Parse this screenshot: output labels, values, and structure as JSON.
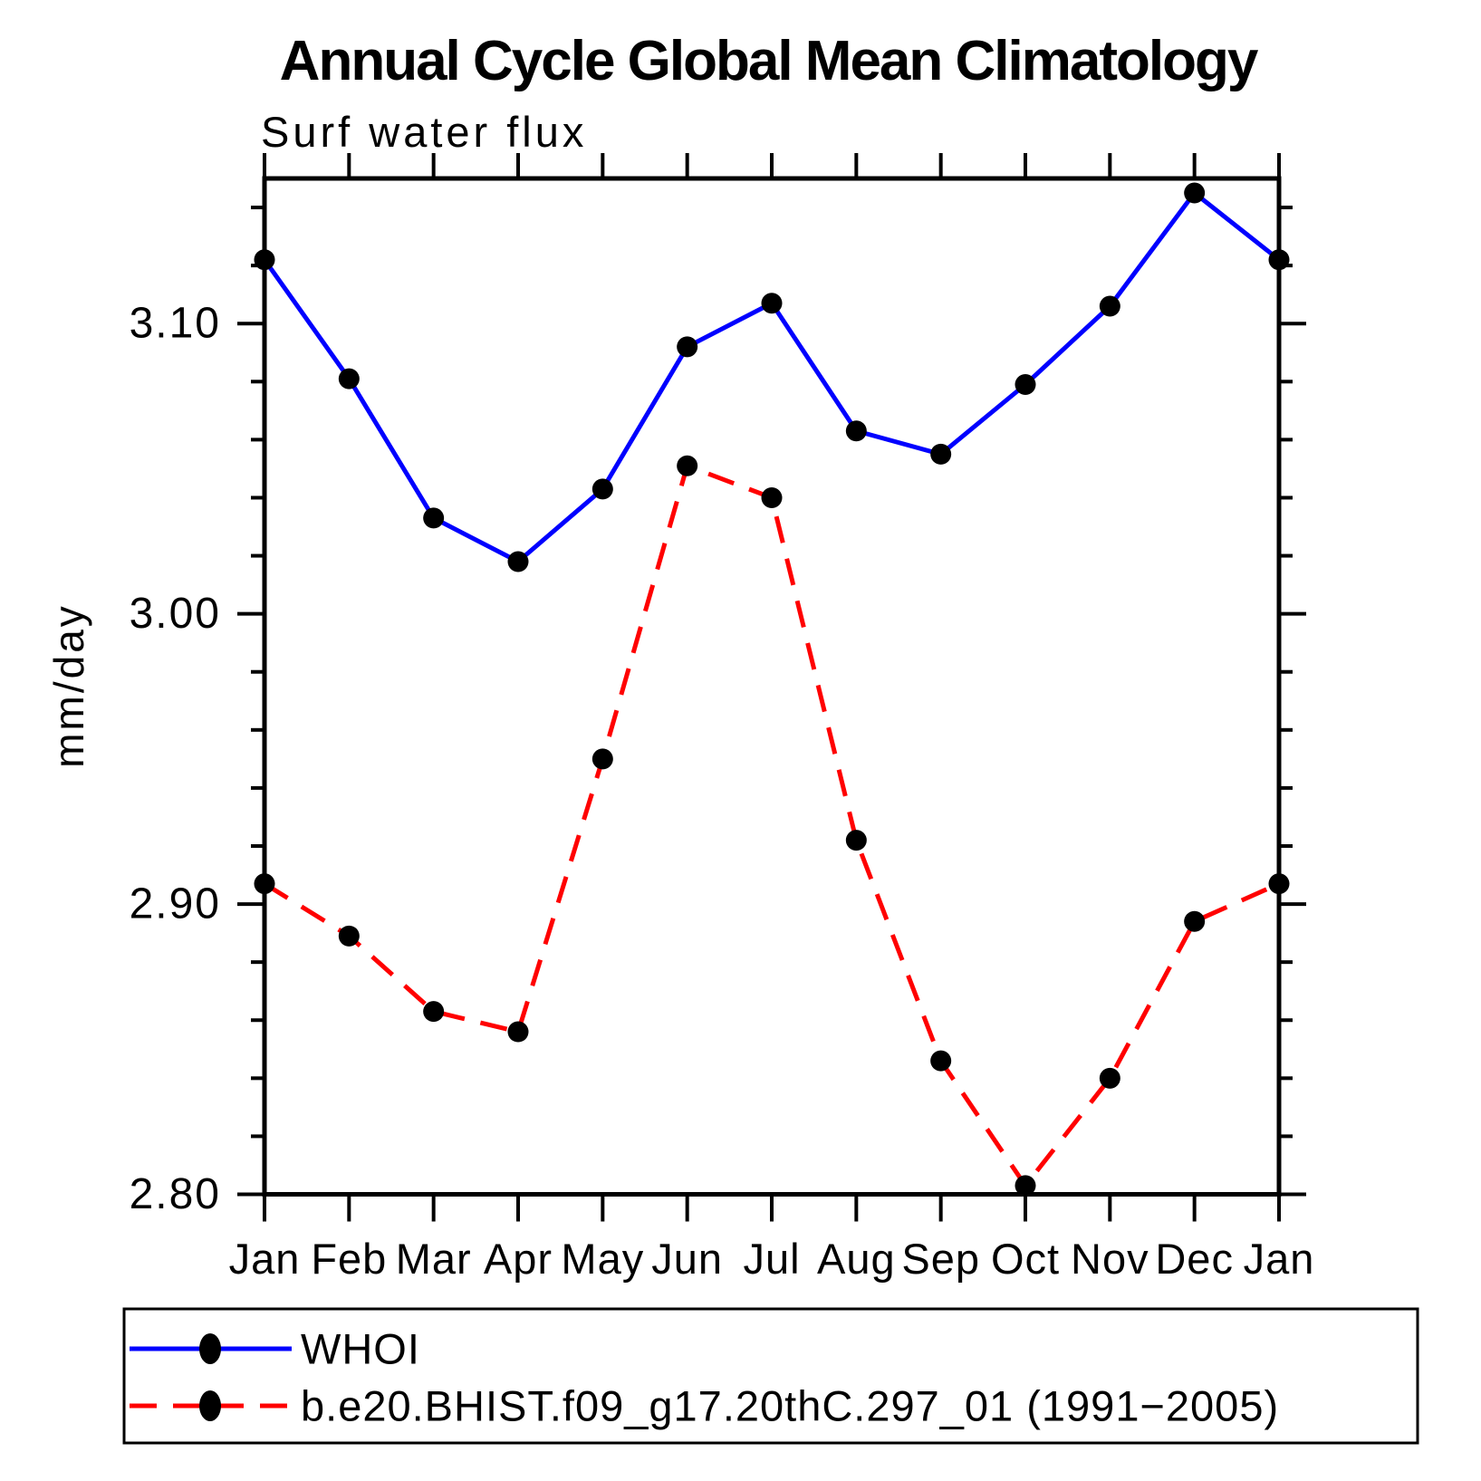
{
  "chart_data": {
    "type": "line",
    "title": "Annual Cycle Global Mean Climatology",
    "subtitle": "Surf water flux",
    "xlabel": "",
    "ylabel": "mm/day",
    "categories": [
      "Jan",
      "Feb",
      "Mar",
      "Apr",
      "May",
      "Jun",
      "Jul",
      "Aug",
      "Sep",
      "Oct",
      "Nov",
      "Dec",
      "Jan"
    ],
    "series": [
      {
        "name": "WHOI",
        "color": "#0000ff",
        "line_style": "solid",
        "marker": "filled-black-circle",
        "values": [
          3.122,
          3.081,
          3.033,
          3.018,
          3.043,
          3.092,
          3.107,
          3.063,
          3.055,
          3.079,
          3.106,
          3.145,
          3.122
        ]
      },
      {
        "name": "b.e20.BHIST.f09_g17.20thC.297_01 (1991−2005)",
        "color": "#ff0000",
        "line_style": "dashed",
        "marker": "filled-black-circle",
        "values": [
          2.907,
          2.889,
          2.863,
          2.856,
          2.95,
          3.051,
          3.04,
          2.922,
          2.846,
          2.803,
          2.84,
          2.894,
          2.907
        ]
      }
    ],
    "ylim": [
      2.8,
      3.15
    ],
    "yticks_major": [
      2.8,
      2.9,
      3.0,
      3.1
    ],
    "ytick_labels": [
      "2.80",
      "2.90",
      "3.00",
      "3.10"
    ],
    "y_minor_step": 0.02,
    "grid": "off",
    "frame": "box with outward ticks on all four sides",
    "legend_position": "bottom-left box",
    "marker_color": "#000000",
    "axis_color": "#000000"
  }
}
